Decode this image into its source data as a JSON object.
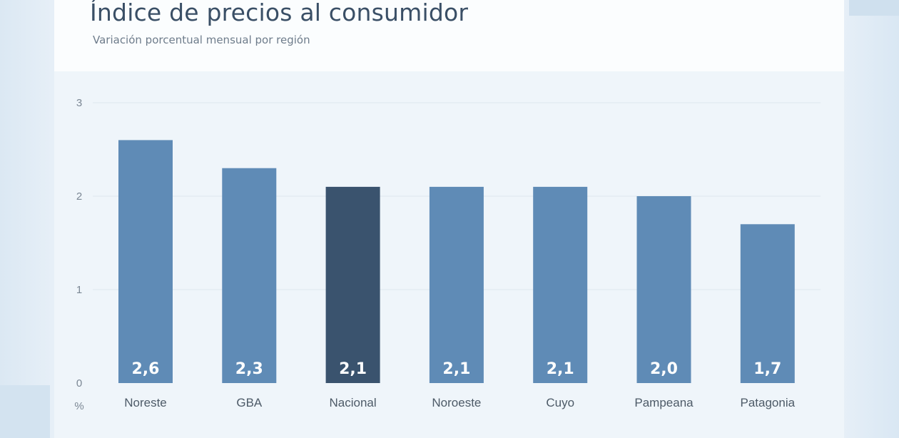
{
  "header": {
    "title": "Índice de precios al consumidor",
    "subtitle": "Variación porcentual mensual por región"
  },
  "chart_data": {
    "type": "bar",
    "title": "Índice de precios al consumidor",
    "subtitle": "Variación porcentual mensual por región",
    "categories": [
      "Noreste",
      "GBA",
      "Nacional",
      "Noroeste",
      "Cuyo",
      "Pampeana",
      "Patagonia"
    ],
    "values": [
      2.6,
      2.3,
      2.1,
      2.1,
      2.1,
      2.0,
      1.7
    ],
    "value_labels": [
      "2,6",
      "2,3",
      "2,1",
      "2,1",
      "2,1",
      "2,0",
      "1,7"
    ],
    "highlight_category": "Nacional",
    "yticks": [
      "0",
      "1",
      "2",
      "3"
    ],
    "ylim": [
      0,
      3
    ],
    "yunit": "%",
    "grid": true,
    "colors": {
      "bar": "#5f8bb6",
      "highlight": "#3a536e",
      "label": "#ffffff"
    }
  }
}
